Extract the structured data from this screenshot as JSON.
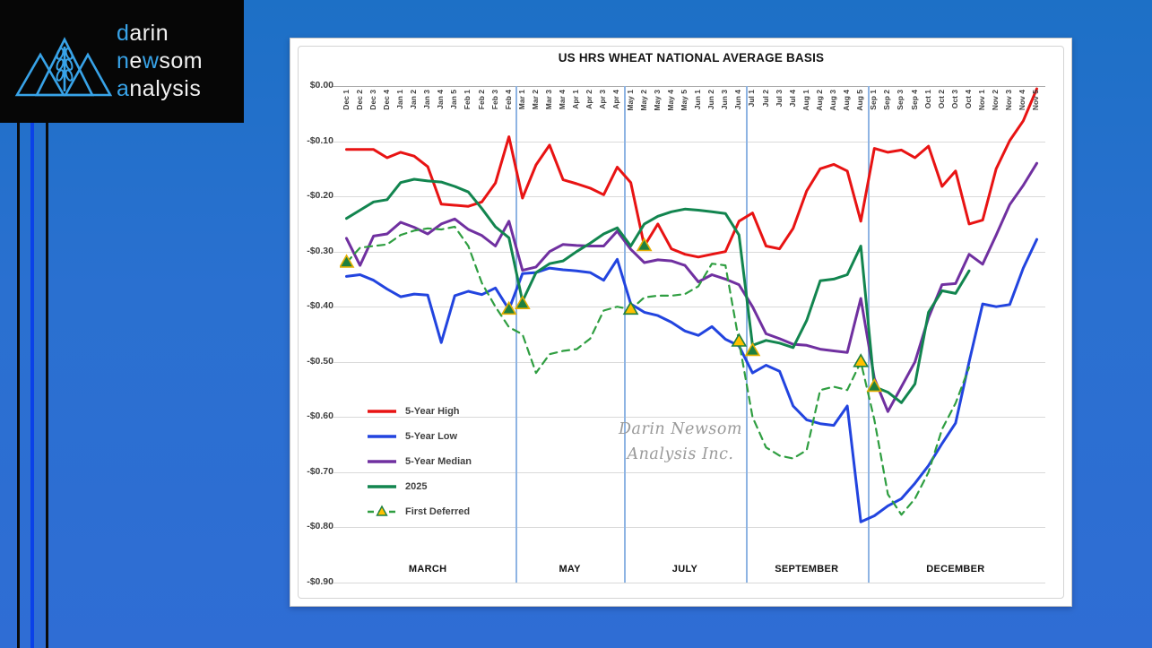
{
  "logo": {
    "words": {
      "w1a": "d",
      "w1b": "arin",
      "w2a": "n",
      "w2b": "e",
      "w2c": "w",
      "w2d": "som",
      "w3a": "a",
      "w3b": "nalysis"
    },
    "accent_color": "#38a3e8",
    "box_color": "#060606"
  },
  "background": {
    "stripe_black": "#0b0b0b",
    "stripe_blue": "#0a41e8"
  },
  "watermark": {
    "line1": "Darin Newsom",
    "line2": "Analysis Inc."
  },
  "chart_data": {
    "type": "line",
    "title": "US HRS WHEAT NATIONAL AVERAGE BASIS",
    "ylabel": "",
    "xlabel": "",
    "ylim": [
      -0.9,
      0.0
    ],
    "grid": true,
    "legend_position": "inside-left",
    "y_ticks": [
      "$0.00",
      "-$0.10",
      "-$0.20",
      "-$0.30",
      "-$0.40",
      "-$0.50",
      "-$0.60",
      "-$0.70",
      "-$0.80",
      "-$0.90"
    ],
    "categories": [
      "Dec 1",
      "Dec 2",
      "Dec 3",
      "Dec 4",
      "Jan 1",
      "Jan 2",
      "Jan 3",
      "Jan 4",
      "Jan 5",
      "Feb 1",
      "Feb 2",
      "Feb 3",
      "Feb 4",
      "Mar 1",
      "Mar 2",
      "Mar 3",
      "Mar 4",
      "Apr 1",
      "Apr 2",
      "Apr 3",
      "Apr 4",
      "May 1",
      "May 2",
      "May 3",
      "May 4",
      "May 5",
      "Jun 1",
      "Jun 2",
      "Jun 3",
      "Jun 4",
      "Jul 1",
      "Jul 2",
      "Jul 3",
      "Jul 4",
      "Aug 1",
      "Aug 2",
      "Aug 3",
      "Aug 4",
      "Aug 5",
      "Sep 1",
      "Sep 2",
      "Sep 3",
      "Sep 4",
      "Oct 1",
      "Oct 2",
      "Oct 3",
      "Oct 4",
      "Nov 1",
      "Nov 2",
      "Nov 3",
      "Nov 4",
      "Nov 5"
    ],
    "series": [
      {
        "name": "5-Year High",
        "color": "#e81313",
        "style": "solid",
        "values": [
          -0.115,
          -0.115,
          -0.115,
          -0.13,
          -0.12,
          -0.127,
          -0.146,
          -0.214,
          -0.216,
          -0.218,
          -0.21,
          -0.176,
          -0.092,
          -0.203,
          -0.143,
          -0.107,
          -0.17,
          -0.177,
          -0.185,
          -0.197,
          -0.147,
          -0.175,
          -0.29,
          -0.25,
          -0.295,
          -0.305,
          -0.31,
          -0.305,
          -0.3,
          -0.245,
          -0.23,
          -0.29,
          -0.295,
          -0.258,
          -0.19,
          -0.15,
          -0.142,
          -0.154,
          -0.245,
          -0.113,
          -0.12,
          -0.116,
          -0.13,
          -0.109,
          -0.182,
          -0.154,
          -0.25,
          -0.243,
          -0.15,
          -0.099,
          -0.063,
          -0.005
        ]
      },
      {
        "name": "5-Year Low",
        "color": "#2244df",
        "style": "solid",
        "values": [
          -0.345,
          -0.342,
          -0.352,
          -0.368,
          -0.382,
          -0.377,
          -0.379,
          -0.465,
          -0.38,
          -0.372,
          -0.378,
          -0.366,
          -0.405,
          -0.34,
          -0.338,
          -0.33,
          -0.333,
          -0.335,
          -0.338,
          -0.352,
          -0.314,
          -0.395,
          -0.41,
          -0.416,
          -0.428,
          -0.444,
          -0.452,
          -0.436,
          -0.459,
          -0.471,
          -0.52,
          -0.506,
          -0.517,
          -0.58,
          -0.605,
          -0.612,
          -0.615,
          -0.58,
          -0.79,
          -0.779,
          -0.761,
          -0.748,
          -0.72,
          -0.688,
          -0.648,
          -0.611,
          -0.5,
          -0.395,
          -0.4,
          -0.396,
          -0.33,
          -0.278
        ]
      },
      {
        "name": "5-Year Median",
        "color": "#7030a0",
        "style": "solid",
        "values": [
          -0.276,
          -0.325,
          -0.272,
          -0.268,
          -0.247,
          -0.256,
          -0.268,
          -0.25,
          -0.241,
          -0.26,
          -0.271,
          -0.29,
          -0.245,
          -0.334,
          -0.328,
          -0.3,
          -0.287,
          -0.289,
          -0.29,
          -0.29,
          -0.263,
          -0.296,
          -0.32,
          -0.315,
          -0.317,
          -0.325,
          -0.355,
          -0.342,
          -0.35,
          -0.36,
          -0.4,
          -0.449,
          -0.458,
          -0.468,
          -0.47,
          -0.477,
          -0.48,
          -0.483,
          -0.385,
          -0.53,
          -0.59,
          -0.545,
          -0.5,
          -0.42,
          -0.36,
          -0.358,
          -0.305,
          -0.323,
          -0.27,
          -0.215,
          -0.18,
          -0.14
        ]
      },
      {
        "name": "2025",
        "color": "#12854f",
        "style": "solid",
        "values": [
          -0.24,
          -0.225,
          -0.21,
          -0.206,
          -0.175,
          -0.169,
          -0.172,
          -0.174,
          -0.182,
          -0.192,
          -0.222,
          -0.255,
          -0.275,
          -0.39,
          -0.338,
          -0.322,
          -0.317,
          -0.3,
          -0.285,
          -0.268,
          -0.257,
          -0.29,
          -0.25,
          -0.236,
          -0.228,
          -0.223,
          -0.225,
          -0.228,
          -0.231,
          -0.27,
          -0.47,
          -0.461,
          -0.466,
          -0.474,
          -0.425,
          -0.353,
          -0.35,
          -0.342,
          -0.29,
          -0.545,
          -0.555,
          -0.574,
          -0.54,
          -0.41,
          -0.371,
          -0.376,
          -0.335,
          null,
          null,
          null,
          null,
          null
        ]
      },
      {
        "name": "First Deferred",
        "color": "#2f9e41",
        "style": "dashed",
        "values": [
          -0.32,
          -0.293,
          -0.29,
          -0.287,
          -0.27,
          -0.262,
          -0.258,
          -0.26,
          -0.255,
          -0.29,
          -0.357,
          -0.4,
          -0.437,
          -0.45,
          -0.52,
          -0.486,
          -0.48,
          -0.477,
          -0.458,
          -0.407,
          -0.4,
          -0.405,
          -0.383,
          -0.38,
          -0.38,
          -0.377,
          -0.363,
          -0.322,
          -0.325,
          -0.463,
          -0.6,
          -0.655,
          -0.67,
          -0.675,
          -0.66,
          -0.551,
          -0.545,
          -0.551,
          -0.5,
          -0.605,
          -0.74,
          -0.777,
          -0.748,
          -0.7,
          -0.622,
          -0.575,
          -0.51,
          null,
          null,
          null,
          null,
          null
        ]
      }
    ],
    "markers": [
      {
        "category": "Dec 1",
        "value": -0.32,
        "fill": "green"
      },
      {
        "category": "Feb 4",
        "value": -0.405,
        "fill": "green"
      },
      {
        "category": "Mar 1",
        "value": -0.395,
        "fill": "green"
      },
      {
        "category": "May 1",
        "value": -0.405,
        "fill": "yellow"
      },
      {
        "category": "May 2",
        "value": -0.29,
        "fill": "green"
      },
      {
        "category": "Jun 4",
        "value": -0.463,
        "fill": "yellow"
      },
      {
        "category": "Jul 1",
        "value": -0.48,
        "fill": "green"
      },
      {
        "category": "Aug 5",
        "value": -0.5,
        "fill": "yellow"
      },
      {
        "category": "Sep 1",
        "value": -0.545,
        "fill": "green"
      }
    ],
    "marker_colors": {
      "green_fill": "#1e8040",
      "gold": "#e3ae00",
      "yellow_fill": "#ffc000"
    },
    "section_dividers": {
      "at": [
        "Mar 1",
        "May 1",
        "Jul 1",
        "Sep 1"
      ],
      "color": "#8eb4e3"
    },
    "month_sections": [
      "MARCH",
      "MAY",
      "JULY",
      "SEPTEMBER",
      "DECEMBER"
    ]
  }
}
